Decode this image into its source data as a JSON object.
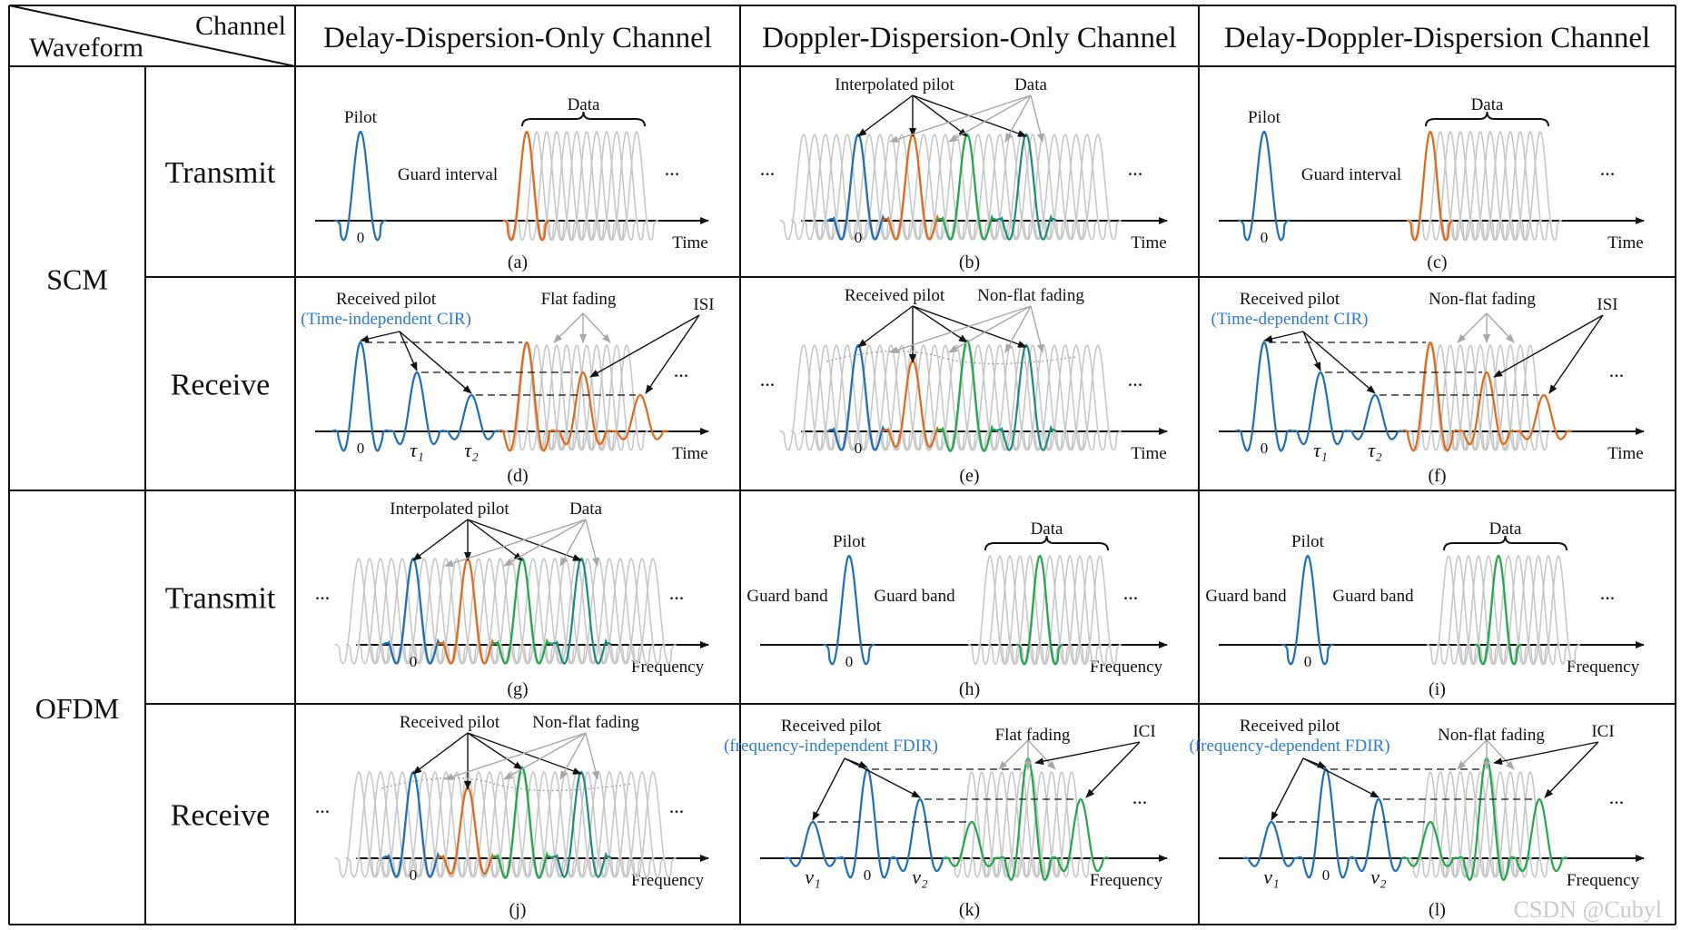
{
  "header": {
    "channel": "Channel",
    "waveform": "Waveform",
    "columns": [
      "Delay-Dispersion-Only Channel",
      "Doppler-Dispersion-Only Channel",
      "Delay-Doppler-Dispersion Channel"
    ]
  },
  "rows": [
    {
      "group": "SCM",
      "labels": [
        "Transmit",
        "Receive"
      ]
    },
    {
      "group": "OFDM",
      "labels": [
        "Transmit",
        "Receive"
      ]
    }
  ],
  "axis_labels": {
    "time": "Time",
    "frequency": "Frequency"
  },
  "colors": {
    "pilot": "#1f6fb8",
    "orange": "#e06a1b",
    "green": "#22a84b",
    "teal": "#1f8a80",
    "gray": "#c8c8c8",
    "annotation_blue": "#2d7bd1"
  },
  "panels": [
    {
      "id": "a",
      "caption": "(a)",
      "type": "sc_tx",
      "labels": {
        "pilot": "Pilot",
        "guard": "Guard interval",
        "data": "Data"
      }
    },
    {
      "id": "b",
      "caption": "(b)",
      "type": "interp_tx",
      "labels": {
        "interp": "Interpolated pilot",
        "data": "Data"
      }
    },
    {
      "id": "c",
      "caption": "(c)",
      "type": "sc_tx",
      "labels": {
        "pilot": "Pilot",
        "guard": "Guard interval",
        "data": "Data"
      }
    },
    {
      "id": "d",
      "caption": "(d)",
      "type": "multipath_rx",
      "labels": {
        "rx": "Received pilot",
        "rx2": "(Time-independent  CIR)",
        "fading": "Flat fading",
        "isi": "ISI",
        "t1": "τ₁",
        "t2": "τ₂"
      }
    },
    {
      "id": "e",
      "caption": "(e)",
      "type": "interp_rx",
      "labels": {
        "rx": "Received pilot",
        "fading": "Non-flat fading"
      }
    },
    {
      "id": "f",
      "caption": "(f)",
      "type": "multipath_rx",
      "labels": {
        "rx": "Received pilot",
        "rx2": "(Time-dependent  CIR)",
        "fading": "Non-flat fading",
        "isi": "ISI",
        "t1": "τ₁",
        "t2": "τ₂"
      }
    },
    {
      "id": "g",
      "caption": "(g)",
      "type": "interp_tx",
      "labels": {
        "interp": "Interpolated pilot",
        "data": "Data"
      }
    },
    {
      "id": "h",
      "caption": "(h)",
      "type": "guard_tx",
      "labels": {
        "pilot": "Pilot",
        "gb1": "Guard band",
        "gb2": "Guard band",
        "data": "Data"
      }
    },
    {
      "id": "i",
      "caption": "(i)",
      "type": "guard_tx",
      "labels": {
        "pilot": "Pilot",
        "gb1": "Guard band",
        "gb2": "Guard band",
        "data": "Data"
      }
    },
    {
      "id": "j",
      "caption": "(j)",
      "type": "interp_rx",
      "labels": {
        "rx": "Received pilot",
        "fading": "Non-flat fading"
      }
    },
    {
      "id": "k",
      "caption": "(k)",
      "type": "multipath_rx",
      "labels": {
        "rx": "Received pilot",
        "rx2": "(frequency-independent  FDIR)",
        "fading": "Flat fading",
        "isi": "ICI",
        "t1": "ν₁",
        "t2": "ν₂"
      }
    },
    {
      "id": "l",
      "caption": "(l)",
      "type": "multipath_rx",
      "labels": {
        "rx": "Received pilot",
        "rx2": "(frequency-dependent  FDIR)",
        "fading": "Non-flat fading",
        "isi": "ICI",
        "t1": "ν₁",
        "t2": "ν₂"
      }
    }
  ],
  "ellipsis": "...",
  "zero": "0",
  "watermark": "CSDN @Cubyl"
}
